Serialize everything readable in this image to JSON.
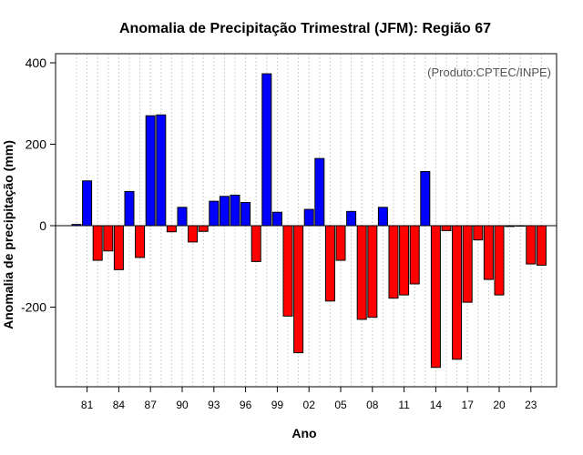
{
  "chart_data": {
    "type": "bar",
    "title": "Anomalia de Precipitação Trimestral (JFM): Região 67",
    "xlabel": "Ano",
    "ylabel": "Anomalia de precipitação (mm)",
    "annotation": "(Produto:CPTEC/INPE)",
    "ylim": [
      -400,
      420
    ],
    "yticks": [
      -200,
      0,
      200,
      400
    ],
    "x_tick_years": [
      1981,
      1984,
      1987,
      1990,
      1993,
      1996,
      1999,
      2002,
      2005,
      2008,
      2011,
      2014,
      2017,
      2020,
      2023
    ],
    "x_tick_labels": [
      "81",
      "84",
      "87",
      "90",
      "93",
      "96",
      "99",
      "02",
      "05",
      "08",
      "11",
      "14",
      "17",
      "20",
      "23"
    ],
    "positive_color": "#0000ff",
    "negative_color": "#ff0000",
    "grid": true,
    "years": [
      1980,
      1981,
      1982,
      1983,
      1984,
      1985,
      1986,
      1987,
      1988,
      1989,
      1990,
      1991,
      1992,
      1993,
      1994,
      1995,
      1996,
      1997,
      1998,
      1999,
      2000,
      2001,
      2002,
      2003,
      2004,
      2005,
      2006,
      2007,
      2008,
      2009,
      2010,
      2011,
      2012,
      2013,
      2014,
      2015,
      2016,
      2017,
      2018,
      2019,
      2020,
      2021,
      2022,
      2023,
      2024
    ],
    "values": [
      3,
      110,
      -85,
      -62,
      -108,
      84,
      -78,
      270,
      272,
      -15,
      45,
      -40,
      -14,
      60,
      72,
      75,
      57,
      -88,
      373,
      33,
      -222,
      -312,
      40,
      165,
      -185,
      -85,
      35,
      -230,
      -225,
      45,
      -178,
      -170,
      -143,
      133,
      -348,
      -12,
      -328,
      -188,
      -35,
      -132,
      -170,
      -2,
      0,
      -94,
      -97
    ]
  }
}
